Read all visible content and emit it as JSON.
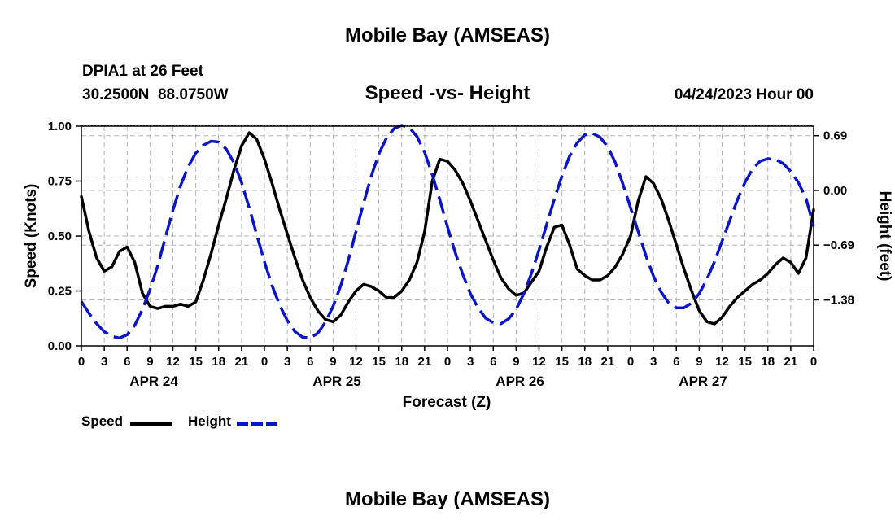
{
  "page": {
    "title_top": "Mobile Bay (AMSEAS)",
    "title_bottom": "Mobile Bay (AMSEAS)",
    "station_line": "DPIA1 at 26 Feet",
    "coords_line": "30.2500N  88.0750W",
    "date_line": "04/24/2023 Hour 00"
  },
  "legend": {
    "speed_label": "Speed",
    "height_label": "Height"
  },
  "chart_data": {
    "type": "line",
    "title": "Speed -vs- Height",
    "xlabel": "Forecast (Z)",
    "ylabel_left": "Speed (Knots)",
    "ylabel_right": "Height (feet)",
    "xlim": [
      0,
      96
    ],
    "ylim_left": [
      0,
      1.0
    ],
    "ylim_right": [
      -1.96,
      0.81
    ],
    "xticks": [
      0,
      3,
      6,
      9,
      12,
      15,
      18,
      21,
      24,
      27,
      30,
      33,
      36,
      39,
      42,
      45,
      48,
      51,
      54,
      57,
      60,
      63,
      66,
      69,
      72,
      75,
      78,
      81,
      84,
      87,
      90,
      93,
      96
    ],
    "xtick_labels": [
      "0",
      "3",
      "6",
      "9",
      "12",
      "15",
      "18",
      "21",
      "0",
      "3",
      "6",
      "9",
      "12",
      "15",
      "18",
      "21",
      "0",
      "3",
      "6",
      "9",
      "12",
      "15",
      "18",
      "21",
      "0",
      "3",
      "6",
      "9",
      "12",
      "15",
      "18",
      "21",
      "0"
    ],
    "day_labels": [
      {
        "x": 9.5,
        "label": "APR 24"
      },
      {
        "x": 33.5,
        "label": "APR 25"
      },
      {
        "x": 57.5,
        "label": "APR 26"
      },
      {
        "x": 81.5,
        "label": "APR 27"
      }
    ],
    "yticks_left": [
      0.0,
      0.25,
      0.5,
      0.75,
      1.0
    ],
    "ytick_labels_left": [
      "0.00",
      "0.25",
      "0.50",
      "0.75",
      "1.00"
    ],
    "yticks_right": [
      0.69,
      0.0,
      -0.69,
      -1.38
    ],
    "ytick_labels_right": [
      "0.69",
      "0.00",
      "−0.69",
      "−1.38"
    ],
    "grid": true,
    "legend_position": "bottom-left",
    "series": [
      {
        "name": "Speed",
        "axis": "left",
        "color": "#000000",
        "dash": "solid",
        "points": [
          [
            0,
            0.68
          ],
          [
            1,
            0.52
          ],
          [
            2,
            0.4
          ],
          [
            3,
            0.34
          ],
          [
            4,
            0.36
          ],
          [
            5,
            0.43
          ],
          [
            6,
            0.45
          ],
          [
            7,
            0.38
          ],
          [
            8,
            0.24
          ],
          [
            9,
            0.18
          ],
          [
            10,
            0.17
          ],
          [
            11,
            0.18
          ],
          [
            12,
            0.18
          ],
          [
            13,
            0.19
          ],
          [
            14,
            0.18
          ],
          [
            15,
            0.2
          ],
          [
            16,
            0.3
          ],
          [
            17,
            0.42
          ],
          [
            18,
            0.55
          ],
          [
            19,
            0.67
          ],
          [
            20,
            0.8
          ],
          [
            21,
            0.91
          ],
          [
            22,
            0.97
          ],
          [
            23,
            0.94
          ],
          [
            24,
            0.85
          ],
          [
            25,
            0.74
          ],
          [
            26,
            0.62
          ],
          [
            27,
            0.51
          ],
          [
            28,
            0.4
          ],
          [
            29,
            0.3
          ],
          [
            30,
            0.22
          ],
          [
            31,
            0.16
          ],
          [
            32,
            0.12
          ],
          [
            33,
            0.11
          ],
          [
            34,
            0.14
          ],
          [
            35,
            0.2
          ],
          [
            36,
            0.25
          ],
          [
            37,
            0.28
          ],
          [
            38,
            0.27
          ],
          [
            39,
            0.25
          ],
          [
            40,
            0.22
          ],
          [
            41,
            0.22
          ],
          [
            42,
            0.25
          ],
          [
            43,
            0.3
          ],
          [
            44,
            0.38
          ],
          [
            45,
            0.52
          ],
          [
            46,
            0.75
          ],
          [
            47,
            0.85
          ],
          [
            48,
            0.84
          ],
          [
            49,
            0.8
          ],
          [
            50,
            0.74
          ],
          [
            51,
            0.66
          ],
          [
            52,
            0.57
          ],
          [
            53,
            0.48
          ],
          [
            54,
            0.39
          ],
          [
            55,
            0.31
          ],
          [
            56,
            0.26
          ],
          [
            57,
            0.23
          ],
          [
            58,
            0.24
          ],
          [
            59,
            0.29
          ],
          [
            60,
            0.34
          ],
          [
            61,
            0.45
          ],
          [
            62,
            0.54
          ],
          [
            63,
            0.55
          ],
          [
            64,
            0.46
          ],
          [
            65,
            0.35
          ],
          [
            66,
            0.32
          ],
          [
            67,
            0.3
          ],
          [
            68,
            0.3
          ],
          [
            69,
            0.32
          ],
          [
            70,
            0.36
          ],
          [
            71,
            0.42
          ],
          [
            72,
            0.5
          ],
          [
            73,
            0.66
          ],
          [
            74,
            0.77
          ],
          [
            75,
            0.74
          ],
          [
            76,
            0.67
          ],
          [
            77,
            0.57
          ],
          [
            78,
            0.46
          ],
          [
            79,
            0.35
          ],
          [
            80,
            0.25
          ],
          [
            81,
            0.16
          ],
          [
            82,
            0.11
          ],
          [
            83,
            0.1
          ],
          [
            84,
            0.13
          ],
          [
            85,
            0.18
          ],
          [
            86,
            0.22
          ],
          [
            87,
            0.25
          ],
          [
            88,
            0.28
          ],
          [
            89,
            0.3
          ],
          [
            90,
            0.33
          ],
          [
            91,
            0.37
          ],
          [
            92,
            0.4
          ],
          [
            93,
            0.38
          ],
          [
            94,
            0.33
          ],
          [
            95,
            0.4
          ],
          [
            96,
            0.62
          ]
        ]
      },
      {
        "name": "Height",
        "axis": "right",
        "color": "#0a14c8",
        "dash": "dashed",
        "points": [
          [
            0,
            -1.4
          ],
          [
            1,
            -1.55
          ],
          [
            2,
            -1.68
          ],
          [
            3,
            -1.78
          ],
          [
            4,
            -1.84
          ],
          [
            5,
            -1.86
          ],
          [
            6,
            -1.82
          ],
          [
            7,
            -1.7
          ],
          [
            8,
            -1.5
          ],
          [
            9,
            -1.25
          ],
          [
            10,
            -0.95
          ],
          [
            11,
            -0.6
          ],
          [
            12,
            -0.25
          ],
          [
            13,
            0.06
          ],
          [
            14,
            0.3
          ],
          [
            15,
            0.47
          ],
          [
            16,
            0.57
          ],
          [
            17,
            0.62
          ],
          [
            18,
            0.61
          ],
          [
            19,
            0.52
          ],
          [
            20,
            0.35
          ],
          [
            21,
            0.1
          ],
          [
            22,
            -0.22
          ],
          [
            23,
            -0.56
          ],
          [
            24,
            -0.9
          ],
          [
            25,
            -1.2
          ],
          [
            26,
            -1.45
          ],
          [
            27,
            -1.64
          ],
          [
            28,
            -1.78
          ],
          [
            29,
            -1.85
          ],
          [
            30,
            -1.86
          ],
          [
            31,
            -1.8
          ],
          [
            32,
            -1.66
          ],
          [
            33,
            -1.46
          ],
          [
            34,
            -1.2
          ],
          [
            35,
            -0.88
          ],
          [
            36,
            -0.52
          ],
          [
            37,
            -0.16
          ],
          [
            38,
            0.18
          ],
          [
            39,
            0.46
          ],
          [
            40,
            0.66
          ],
          [
            41,
            0.78
          ],
          [
            42,
            0.82
          ],
          [
            43,
            0.79
          ],
          [
            44,
            0.68
          ],
          [
            45,
            0.48
          ],
          [
            46,
            0.2
          ],
          [
            47,
            -0.12
          ],
          [
            48,
            -0.46
          ],
          [
            49,
            -0.78
          ],
          [
            50,
            -1.06
          ],
          [
            51,
            -1.3
          ],
          [
            52,
            -1.48
          ],
          [
            53,
            -1.61
          ],
          [
            54,
            -1.67
          ],
          [
            55,
            -1.68
          ],
          [
            56,
            -1.62
          ],
          [
            57,
            -1.5
          ],
          [
            58,
            -1.3
          ],
          [
            59,
            -1.05
          ],
          [
            60,
            -0.75
          ],
          [
            61,
            -0.43
          ],
          [
            62,
            -0.11
          ],
          [
            63,
            0.18
          ],
          [
            64,
            0.43
          ],
          [
            65,
            0.6
          ],
          [
            66,
            0.7
          ],
          [
            67,
            0.72
          ],
          [
            68,
            0.67
          ],
          [
            69,
            0.55
          ],
          [
            70,
            0.35
          ],
          [
            71,
            0.08
          ],
          [
            72,
            -0.22
          ],
          [
            73,
            -0.52
          ],
          [
            74,
            -0.82
          ],
          [
            75,
            -1.08
          ],
          [
            76,
            -1.28
          ],
          [
            77,
            -1.42
          ],
          [
            78,
            -1.48
          ],
          [
            79,
            -1.48
          ],
          [
            80,
            -1.42
          ],
          [
            81,
            -1.3
          ],
          [
            82,
            -1.12
          ],
          [
            83,
            -0.9
          ],
          [
            84,
            -0.64
          ],
          [
            85,
            -0.38
          ],
          [
            86,
            -0.12
          ],
          [
            87,
            0.1
          ],
          [
            88,
            0.27
          ],
          [
            89,
            0.37
          ],
          [
            90,
            0.4
          ],
          [
            91,
            0.39
          ],
          [
            92,
            0.34
          ],
          [
            93,
            0.24
          ],
          [
            94,
            0.1
          ],
          [
            95,
            -0.1
          ],
          [
            96,
            -0.45
          ]
        ]
      }
    ]
  }
}
